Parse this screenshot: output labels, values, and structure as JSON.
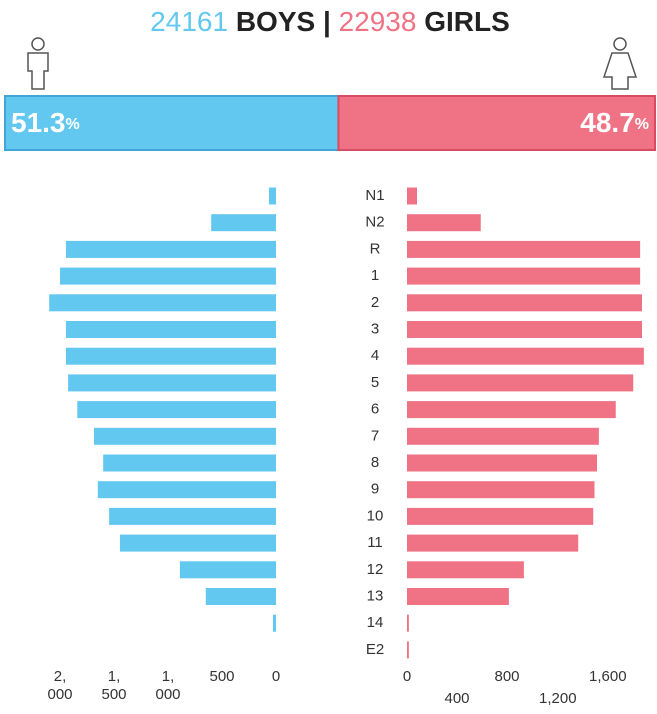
{
  "chart_data": {
    "type": "butterfly_bar",
    "boys_total": 24161,
    "boys_label": "BOYS",
    "separator": "|",
    "girls_total": 22938,
    "girls_label": "GIRLS",
    "boys_pct": 51.3,
    "girls_pct": 48.7,
    "pct_sign": "%",
    "categories": [
      "N1",
      "N2",
      "R",
      "1",
      "2",
      "3",
      "4",
      "5",
      "6",
      "7",
      "8",
      "9",
      "10",
      "11",
      "12",
      "13",
      "14",
      "E2"
    ],
    "series": [
      {
        "name": "BOYS",
        "color": "#62c8f0",
        "values": [
          65,
          600,
          1945,
          2000,
          2100,
          1945,
          1945,
          1925,
          1840,
          1685,
          1600,
          1650,
          1545,
          1445,
          890,
          650,
          28,
          0
        ]
      },
      {
        "name": "GIRLS",
        "color": "#f07285",
        "values": [
          80,
          590,
          1865,
          1865,
          1880,
          1880,
          1895,
          1810,
          1670,
          1535,
          1520,
          1500,
          1490,
          1370,
          935,
          815,
          15,
          15
        ]
      }
    ],
    "xlim_left": [
      0,
      2100
    ],
    "xticks_left": [
      {
        "value": 2000,
        "label": "2, 000"
      },
      {
        "value": 1500,
        "label": "1, 500"
      },
      {
        "value": 1000,
        "label": "1, 000"
      },
      500,
      0
    ],
    "xlim_right": [
      0,
      1900
    ],
    "xticks_right": [
      0,
      400,
      800,
      {
        "value": 1200,
        "label": "1,200"
      },
      {
        "value": 1600,
        "label": "1,600"
      }
    ]
  }
}
